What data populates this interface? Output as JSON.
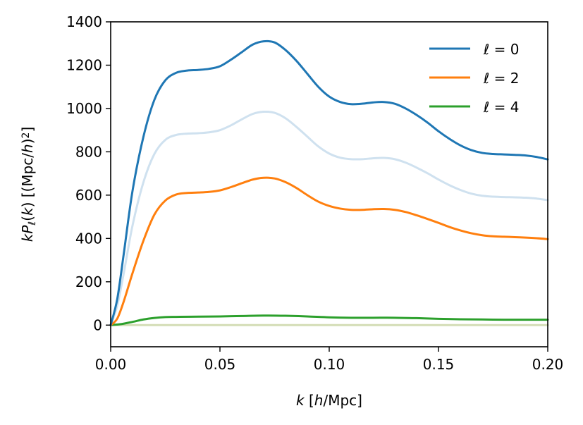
{
  "chart_data": {
    "type": "line",
    "title": "",
    "xlabel_parts": [
      {
        "t": "k",
        "i": true
      },
      {
        "t": " [",
        "i": false
      },
      {
        "t": "h",
        "i": true
      },
      {
        "t": "/Mpc]",
        "i": false
      }
    ],
    "ylabel_parts": [
      {
        "t": "kP",
        "i": true
      },
      {
        "t": "ℓ",
        "i": true,
        "sub": true
      },
      {
        "t": "(",
        "i": false
      },
      {
        "t": "k",
        "i": true
      },
      {
        "t": ") [(Mpc/",
        "i": false
      },
      {
        "t": "h",
        "i": true
      },
      {
        "t": ")",
        "i": false
      },
      {
        "t": "2",
        "i": false,
        "sup": true
      },
      {
        "t": "]",
        "i": false
      }
    ],
    "xlim": [
      0.0,
      0.2
    ],
    "ylim": [
      -100,
      1400
    ],
    "x_ticks": [
      0.0,
      0.05,
      0.1,
      0.15,
      0.2
    ],
    "x_tick_labels": [
      "0.00",
      "0.05",
      "0.10",
      "0.15",
      "0.20"
    ],
    "y_ticks": [
      0,
      200,
      400,
      600,
      800,
      1000,
      1200,
      1400
    ],
    "y_tick_labels": [
      "0",
      "200",
      "400",
      "600",
      "800",
      "1000",
      "1200",
      "1400"
    ],
    "grid": false,
    "legend_position": "top-right",
    "series": [
      {
        "name": "ℓ = 0",
        "color": "#1f77b4",
        "in_legend": true,
        "x": [
          0.0,
          0.003,
          0.006,
          0.01,
          0.015,
          0.02,
          0.025,
          0.03,
          0.035,
          0.04,
          0.045,
          0.05,
          0.055,
          0.06,
          0.065,
          0.07,
          0.075,
          0.08,
          0.085,
          0.09,
          0.095,
          0.1,
          0.105,
          0.11,
          0.115,
          0.12,
          0.125,
          0.13,
          0.135,
          0.14,
          0.145,
          0.15,
          0.155,
          0.16,
          0.165,
          0.17,
          0.175,
          0.18,
          0.185,
          0.19,
          0.195,
          0.2
        ],
        "y": [
          0,
          120,
          330,
          620,
          870,
          1040,
          1130,
          1165,
          1175,
          1178,
          1183,
          1195,
          1225,
          1260,
          1295,
          1310,
          1305,
          1270,
          1220,
          1160,
          1100,
          1055,
          1030,
          1020,
          1022,
          1028,
          1030,
          1022,
          1000,
          970,
          935,
          895,
          860,
          830,
          808,
          795,
          790,
          788,
          786,
          783,
          776,
          765
        ]
      },
      {
        "name": "",
        "color": "#cfe1ef",
        "in_legend": false,
        "x": [
          0.0,
          0.003,
          0.006,
          0.01,
          0.015,
          0.02,
          0.025,
          0.03,
          0.035,
          0.04,
          0.045,
          0.05,
          0.055,
          0.06,
          0.065,
          0.07,
          0.075,
          0.08,
          0.085,
          0.09,
          0.095,
          0.1,
          0.105,
          0.11,
          0.115,
          0.12,
          0.125,
          0.13,
          0.135,
          0.14,
          0.145,
          0.15,
          0.155,
          0.16,
          0.165,
          0.17,
          0.175,
          0.18,
          0.185,
          0.19,
          0.195,
          0.2
        ],
        "y": [
          0,
          90,
          240,
          460,
          660,
          790,
          855,
          878,
          884,
          886,
          890,
          900,
          922,
          950,
          975,
          985,
          980,
          955,
          915,
          870,
          825,
          792,
          773,
          766,
          766,
          770,
          772,
          766,
          750,
          727,
          701,
          672,
          646,
          624,
          607,
          597,
          593,
          591,
          590,
          588,
          584,
          577
        ]
      },
      {
        "name": "ℓ = 2",
        "color": "#ff7f0e",
        "in_legend": true,
        "x": [
          0.0,
          0.003,
          0.006,
          0.01,
          0.015,
          0.02,
          0.025,
          0.03,
          0.035,
          0.04,
          0.045,
          0.05,
          0.055,
          0.06,
          0.065,
          0.07,
          0.075,
          0.08,
          0.085,
          0.09,
          0.095,
          0.1,
          0.105,
          0.11,
          0.115,
          0.12,
          0.125,
          0.13,
          0.135,
          0.14,
          0.145,
          0.15,
          0.155,
          0.16,
          0.165,
          0.17,
          0.175,
          0.18,
          0.185,
          0.19,
          0.195,
          0.2
        ],
        "y": [
          0,
          30,
          110,
          240,
          390,
          510,
          575,
          603,
          610,
          612,
          615,
          622,
          637,
          655,
          672,
          680,
          677,
          660,
          633,
          600,
          570,
          550,
          538,
          532,
          532,
          535,
          536,
          532,
          522,
          507,
          490,
          472,
          453,
          437,
          424,
          415,
          410,
          408,
          406,
          404,
          401,
          397
        ]
      },
      {
        "name": "ℓ = 4",
        "color": "#2ca02c",
        "in_legend": true,
        "x": [
          0.0,
          0.005,
          0.01,
          0.015,
          0.02,
          0.025,
          0.03,
          0.04,
          0.05,
          0.06,
          0.07,
          0.08,
          0.09,
          0.1,
          0.11,
          0.12,
          0.13,
          0.14,
          0.15,
          0.16,
          0.17,
          0.18,
          0.19,
          0.2
        ],
        "y": [
          0,
          5,
          15,
          26,
          33,
          37,
          38,
          39,
          40,
          42,
          44,
          43,
          40,
          36,
          34,
          34,
          34,
          32,
          29,
          27,
          26,
          25,
          25,
          25
        ]
      },
      {
        "name": "",
        "color": "#d4ddb6",
        "in_legend": false,
        "x": [
          0.0,
          0.2
        ],
        "y": [
          0,
          0
        ]
      }
    ]
  }
}
